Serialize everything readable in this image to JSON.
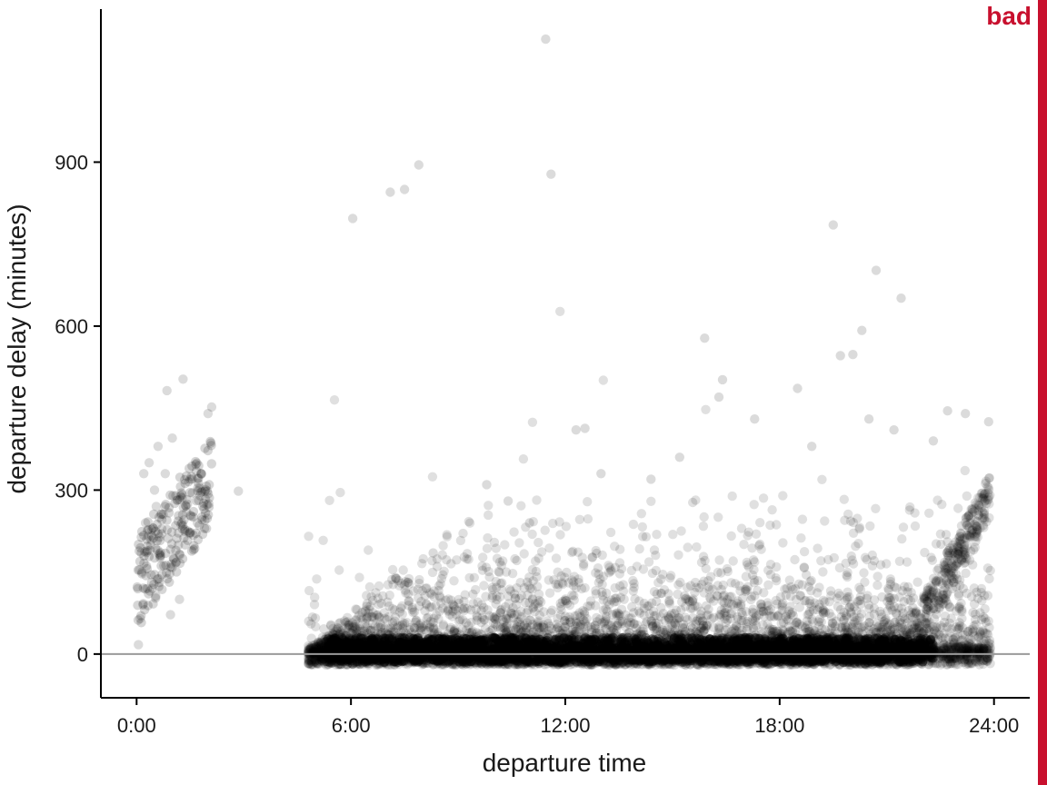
{
  "badge": {
    "label": "bad",
    "color": "#c8102e"
  },
  "chart_data": {
    "type": "scatter",
    "title": "",
    "xlabel": "departure time",
    "ylabel": "departure delay (minutes)",
    "xlim": [
      -1,
      25
    ],
    "ylim": [
      -80,
      1180
    ],
    "xticks": [
      0,
      6,
      12,
      18,
      24
    ],
    "xtick_labels": [
      "0:00",
      "6:00",
      "12:00",
      "18:00",
      "24:00"
    ],
    "yticks": [
      0,
      300,
      600,
      900
    ],
    "ytick_labels": [
      "0",
      "300",
      "600",
      "900"
    ],
    "reference_line_y": 0,
    "grid": false,
    "point_color": "#000000",
    "point_opacity": 0.12,
    "series": [
      {
        "points": [
          [
            11.45,
            1125
          ],
          [
            11.6,
            878
          ],
          [
            6.05,
            797
          ],
          [
            7.1,
            845
          ],
          [
            7.5,
            850
          ],
          [
            7.9,
            895
          ],
          [
            19.5,
            785
          ],
          [
            20.7,
            702
          ],
          [
            21.4,
            651
          ],
          [
            20.3,
            592
          ],
          [
            19.7,
            546
          ],
          [
            20.05,
            548
          ],
          [
            15.9,
            578
          ],
          [
            16.4,
            502
          ],
          [
            16.3,
            470
          ],
          [
            18.5,
            486
          ],
          [
            17.3,
            430
          ],
          [
            20.5,
            430
          ],
          [
            1.3,
            503
          ],
          [
            0.85,
            482
          ],
          [
            2.1,
            452
          ],
          [
            2.0,
            440
          ],
          [
            2.85,
            298
          ],
          [
            0.05,
            17
          ],
          [
            0.1,
            65
          ],
          [
            0.95,
            72
          ],
          [
            1.2,
            100
          ],
          [
            12.3,
            410
          ],
          [
            12.55,
            413
          ],
          [
            13.0,
            330
          ],
          [
            23.2,
            440
          ],
          [
            23.85,
            425
          ],
          [
            22.7,
            445
          ],
          [
            21.2,
            410
          ],
          [
            9.8,
            310
          ],
          [
            0.2,
            330
          ],
          [
            0.35,
            350
          ],
          [
            0.5,
            300
          ],
          [
            0.6,
            380
          ],
          [
            0.8,
            330
          ],
          [
            1.0,
            395
          ],
          [
            1.5,
            320
          ],
          [
            1.8,
            330
          ],
          [
            0.25,
            240
          ],
          [
            0.4,
            200
          ],
          [
            0.55,
            270
          ],
          [
            0.7,
            220
          ],
          [
            1.1,
            290
          ],
          [
            1.4,
            260
          ],
          [
            1.7,
            240
          ],
          [
            0.15,
            150
          ],
          [
            0.3,
            120
          ],
          [
            8.3,
            185
          ],
          [
            14.4,
            320
          ],
          [
            15.2,
            360
          ],
          [
            18.9,
            380
          ],
          [
            22.3,
            390
          ],
          [
            10.4,
            280
          ],
          [
            11.0,
            240
          ]
        ]
      }
    ]
  }
}
